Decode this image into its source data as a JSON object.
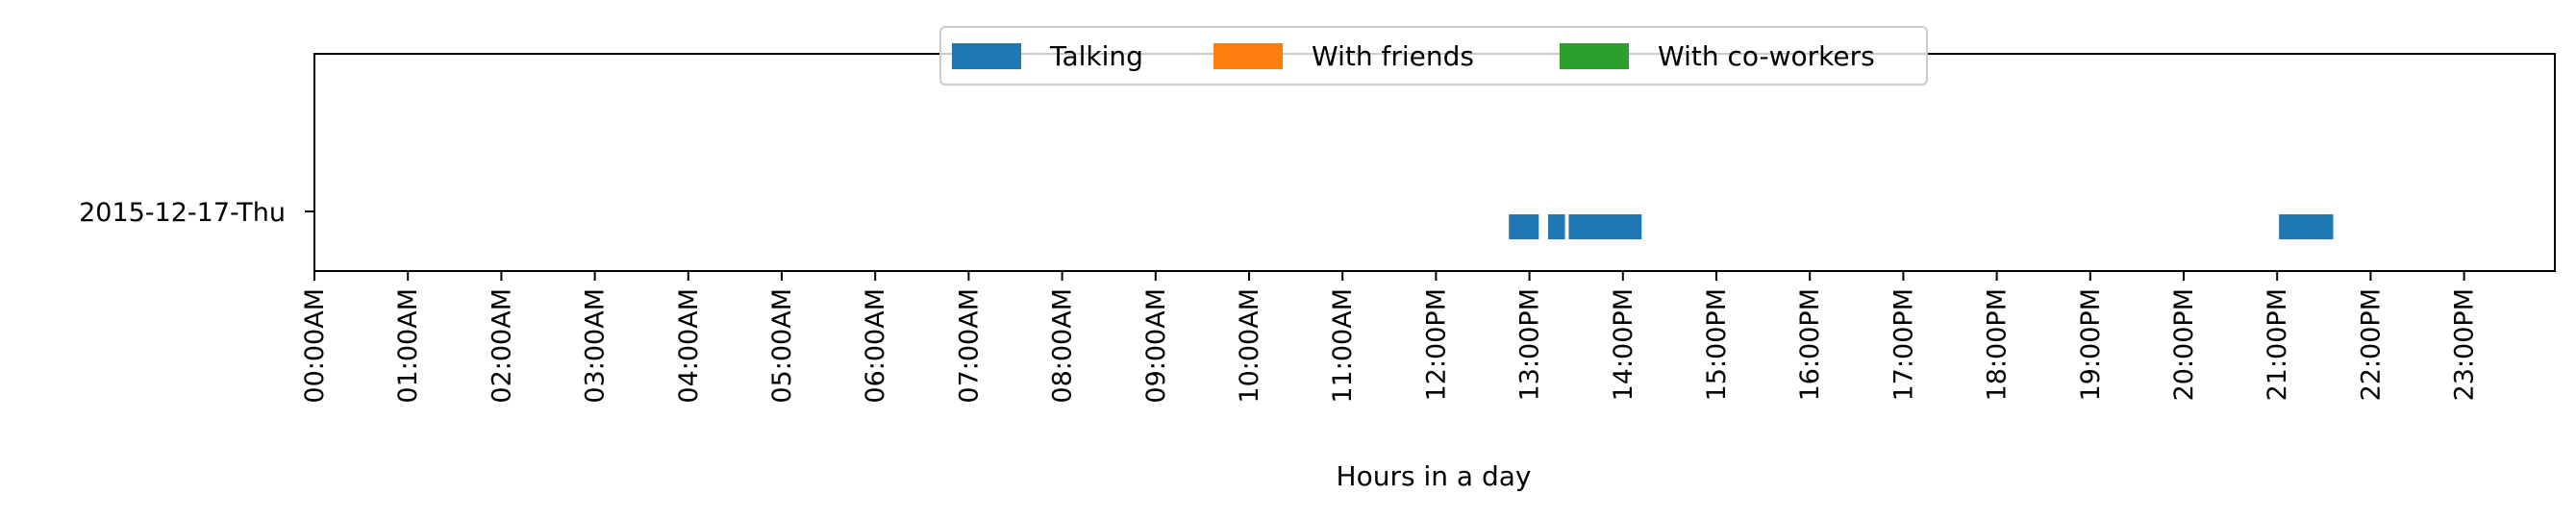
{
  "chart_data": {
    "type": "timeline",
    "xlabel": "Hours in a day",
    "ylabel": "",
    "xlim": [
      0,
      24
    ],
    "grid": false,
    "legend_position": "top-center",
    "categories": [
      "2015-12-17-Thu"
    ],
    "x_ticks": [
      "00:00AM",
      "01:00AM",
      "02:00AM",
      "03:00AM",
      "04:00AM",
      "05:00AM",
      "06:00AM",
      "07:00AM",
      "08:00AM",
      "09:00AM",
      "10:00AM",
      "11:00AM",
      "12:00PM",
      "13:00PM",
      "14:00PM",
      "15:00PM",
      "16:00PM",
      "17:00PM",
      "18:00PM",
      "19:00PM",
      "20:00PM",
      "21:00PM",
      "22:00PM",
      "23:00PM"
    ],
    "series": [
      {
        "name": "Talking",
        "color": "#1f77b4",
        "intervals": [
          {
            "day": "2015-12-17-Thu",
            "start": 12.78,
            "end": 13.1
          },
          {
            "day": "2015-12-17-Thu",
            "start": 13.2,
            "end": 13.38
          },
          {
            "day": "2015-12-17-Thu",
            "start": 13.42,
            "end": 14.2
          },
          {
            "day": "2015-12-17-Thu",
            "start": 21.02,
            "end": 21.6
          }
        ]
      },
      {
        "name": "With friends",
        "color": "#ff7f0e",
        "intervals": []
      },
      {
        "name": "With co-workers",
        "color": "#2ca02c",
        "intervals": []
      }
    ]
  }
}
